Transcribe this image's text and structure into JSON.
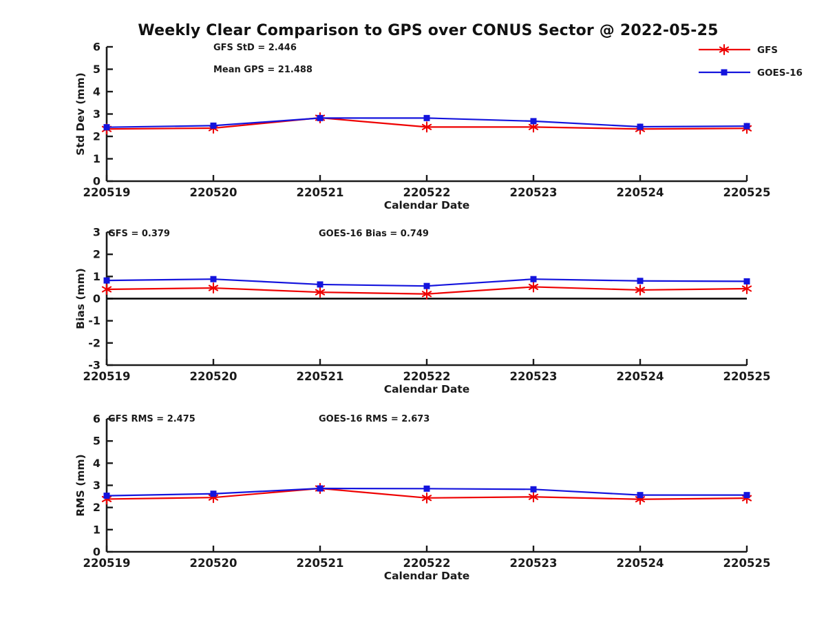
{
  "title": "Weekly Clear Comparison to GPS over CONUS Sector @ 2022-05-25",
  "colors": {
    "gfs": "#ee0000",
    "goes": "#1414dd",
    "axis": "#1a1a1a",
    "zero_line": "#000000",
    "background": "#ffffff"
  },
  "legend": {
    "position": "top-right",
    "entries": [
      {
        "label": "GFS",
        "color_key": "gfs",
        "marker": "asterisk"
      },
      {
        "label": "GOES-16",
        "color_key": "goes",
        "marker": "square"
      }
    ]
  },
  "chart_data": [
    {
      "type": "line",
      "ylabel": "Std Dev (mm)",
      "xlabel": "Calendar Date",
      "ylim": [
        0,
        6
      ],
      "ytick_step": 1,
      "zero_line": false,
      "grid": false,
      "categories": [
        "220519",
        "220520",
        "220521",
        "220522",
        "220523",
        "220524",
        "220525"
      ],
      "series": [
        {
          "name": "GFS",
          "color_key": "gfs",
          "marker": "asterisk",
          "values": [
            2.33,
            2.37,
            2.83,
            2.42,
            2.42,
            2.33,
            2.36
          ]
        },
        {
          "name": "GOES-16",
          "color_key": "goes",
          "marker": "square",
          "values": [
            2.41,
            2.48,
            2.82,
            2.82,
            2.68,
            2.43,
            2.46
          ]
        }
      ],
      "annotations": [
        {
          "text": "GFS StD = 2.446"
        },
        {
          "text": "Mean GPS = 21.488"
        }
      ]
    },
    {
      "type": "line",
      "ylabel": "Bias (mm)",
      "xlabel": "Calendar Date",
      "ylim": [
        -3,
        3
      ],
      "ytick_step": 1,
      "zero_line": true,
      "grid": false,
      "categories": [
        "220519",
        "220520",
        "220521",
        "220522",
        "220523",
        "220524",
        "220525"
      ],
      "series": [
        {
          "name": "GFS",
          "color_key": "gfs",
          "marker": "asterisk",
          "values": [
            0.42,
            0.48,
            0.29,
            0.21,
            0.53,
            0.39,
            0.45
          ]
        },
        {
          "name": "GOES-16",
          "color_key": "goes",
          "marker": "square",
          "values": [
            0.82,
            0.88,
            0.64,
            0.57,
            0.88,
            0.8,
            0.78
          ]
        }
      ],
      "annotations": [
        {
          "text": "GFS = 0.379"
        },
        {
          "text": "GOES-16 Bias = 0.749"
        }
      ]
    },
    {
      "type": "line",
      "ylabel": "RMS (mm)",
      "xlabel": "Calendar Date",
      "ylim": [
        0,
        6
      ],
      "ytick_step": 1,
      "zero_line": false,
      "grid": false,
      "categories": [
        "220519",
        "220520",
        "220521",
        "220522",
        "220523",
        "220524",
        "220525"
      ],
      "series": [
        {
          "name": "GFS",
          "color_key": "gfs",
          "marker": "asterisk",
          "values": [
            2.38,
            2.45,
            2.86,
            2.43,
            2.48,
            2.37,
            2.42
          ]
        },
        {
          "name": "GOES-16",
          "color_key": "goes",
          "marker": "square",
          "values": [
            2.53,
            2.62,
            2.86,
            2.85,
            2.82,
            2.56,
            2.56
          ]
        }
      ],
      "annotations": [
        {
          "text": "GFS RMS = 2.475"
        },
        {
          "text": "GOES-16 RMS = 2.673"
        }
      ]
    }
  ]
}
